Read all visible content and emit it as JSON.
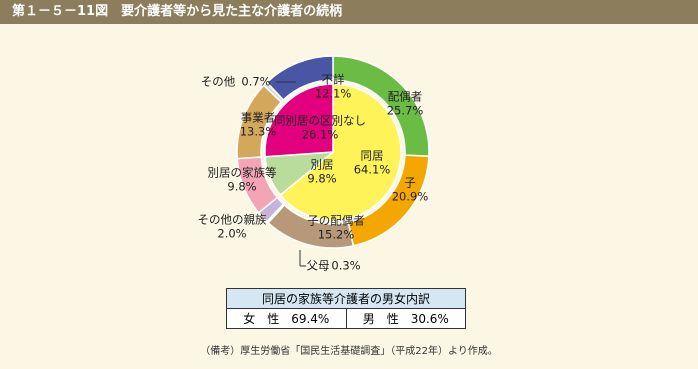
{
  "header": {
    "title": "第１－５－11図　要介護者等から見た主な介護者の続柄"
  },
  "chart_data": {
    "type": "sunburst",
    "inner": {
      "categories": [
        "同居",
        "別居",
        "同別居の区別なし"
      ],
      "values": [
        64.1,
        9.8,
        26.1
      ],
      "value_labels": [
        "64.1%",
        "9.8%",
        "26.1%"
      ],
      "colors": [
        "#fff35a",
        "#b9dc9c",
        "#e2007e"
      ]
    },
    "outer": {
      "categories": [
        "配偶者",
        "子",
        "子の配偶者",
        "父母",
        "その他の親族",
        "別居の家族等",
        "事業者",
        "その他",
        "不詳"
      ],
      "values": [
        25.7,
        20.9,
        15.2,
        0.3,
        2.0,
        9.8,
        13.3,
        0.7,
        12.1
      ],
      "value_labels": [
        "25.7%",
        "20.9%",
        "15.2%",
        "0.3%",
        "2.0%",
        "9.8%",
        "13.3%",
        "0.7%",
        "12.1%"
      ],
      "colors": [
        "#6bbc45",
        "#f4a700",
        "#b7997a",
        "#ffffff",
        "#c8b2d8",
        "#f3a5b6",
        "#d4a85b",
        "#dddddd",
        "#4856a5"
      ]
    }
  },
  "table": {
    "title": "同居の家族等介護者の男女内訳",
    "rows": [
      [
        "女　性　69.4%",
        "男　性　30.6%"
      ]
    ]
  },
  "note": "（備考）厚生労働省「国民生活基礎調査」（平成22年）より作成。"
}
